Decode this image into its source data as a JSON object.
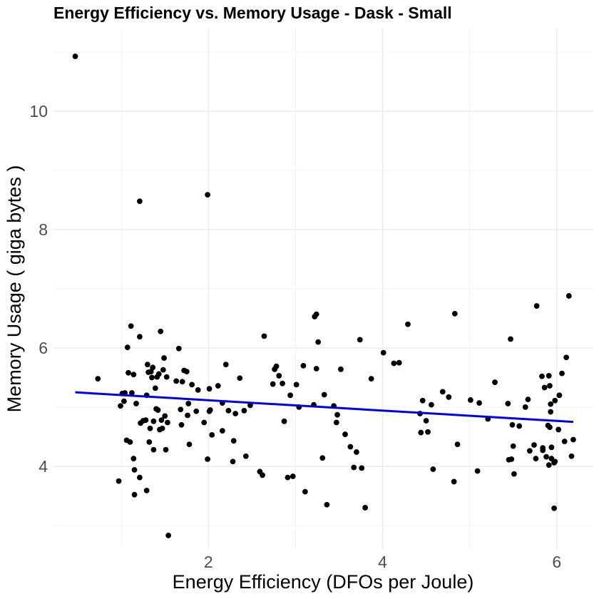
{
  "chart_data": {
    "type": "scatter",
    "title": "Energy Efficiency vs. Memory Usage  -  Dask  -  Small",
    "xlabel": "Energy Efficiency (DFOs per Joule)",
    "ylabel": "Memory Usage ( giga bytes )",
    "xlim": [
      0.22,
      6.42
    ],
    "ylim": [
      2.6,
      11.4
    ],
    "x_major_ticks": [
      2,
      4,
      6
    ],
    "x_minor_ticks": [
      1,
      3,
      5
    ],
    "y_major_ticks": [
      4,
      6,
      8,
      10
    ],
    "y_minor_ticks": [
      3,
      5,
      7,
      9,
      11
    ],
    "x_tick_labels": [
      "2",
      "4",
      "6"
    ],
    "y_tick_labels": [
      "4",
      "6",
      "8",
      "10"
    ],
    "grid": true,
    "legend": "none",
    "point_color": "#000000",
    "trend": {
      "type": "linear",
      "color": "#0000ee",
      "x": [
        0.47,
        6.19
      ],
      "y": [
        5.25,
        4.75
      ]
    },
    "points": [
      [
        0.47,
        10.93
      ],
      [
        0.73,
        5.48
      ],
      [
        0.97,
        3.75
      ],
      [
        0.99,
        5.02
      ],
      [
        1.01,
        5.23
      ],
      [
        1.03,
        5.1
      ],
      [
        1.04,
        5.24
      ],
      [
        1.06,
        4.44
      ],
      [
        1.07,
        6.01
      ],
      [
        1.08,
        5.58
      ],
      [
        1.1,
        4.41
      ],
      [
        1.11,
        6.37
      ],
      [
        1.12,
        5.24
      ],
      [
        1.14,
        4.13
      ],
      [
        1.14,
        5.55
      ],
      [
        1.15,
        3.94
      ],
      [
        1.15,
        3.52
      ],
      [
        1.17,
        5.06
      ],
      [
        1.21,
        3.81
      ],
      [
        1.21,
        6.19
      ],
      [
        1.21,
        8.48
      ],
      [
        1.22,
        4.73
      ],
      [
        1.25,
        4.77
      ],
      [
        1.28,
        4.78
      ],
      [
        1.29,
        3.59
      ],
      [
        1.29,
        5.2
      ],
      [
        1.3,
        5.72
      ],
      [
        1.31,
        5.59
      ],
      [
        1.32,
        4.41
      ],
      [
        1.33,
        4.64
      ],
      [
        1.34,
        5.6
      ],
      [
        1.35,
        5.5
      ],
      [
        1.36,
        5.67
      ],
      [
        1.37,
        4.28
      ],
      [
        1.37,
        4.76
      ],
      [
        1.39,
        5.32
      ],
      [
        1.4,
        4.97
      ],
      [
        1.41,
        5.51
      ],
      [
        1.42,
        4.95
      ],
      [
        1.43,
        5.56
      ],
      [
        1.44,
        4.62
      ],
      [
        1.45,
        6.28
      ],
      [
        1.46,
        4.78
      ],
      [
        1.47,
        4.64
      ],
      [
        1.48,
        5.63
      ],
      [
        1.49,
        5.83
      ],
      [
        1.5,
        4.85
      ],
      [
        1.51,
        4.28
      ],
      [
        1.52,
        5.51
      ],
      [
        1.53,
        4.74
      ],
      [
        1.54,
        2.83
      ],
      [
        1.63,
        5.44
      ],
      [
        1.66,
        5.99
      ],
      [
        1.68,
        4.96
      ],
      [
        1.69,
        4.7
      ],
      [
        1.7,
        5.43
      ],
      [
        1.72,
        5.62
      ],
      [
        1.75,
        5.6
      ],
      [
        1.76,
        4.86
      ],
      [
        1.77,
        5.06
      ],
      [
        1.78,
        4.37
      ],
      [
        1.81,
        5.38
      ],
      [
        1.86,
        4.93
      ],
      [
        1.88,
        5.29
      ],
      [
        1.95,
        4.74
      ],
      [
        1.99,
        4.12
      ],
      [
        1.99,
        8.59
      ],
      [
        2.01,
        5.31
      ],
      [
        2.01,
        4.93
      ],
      [
        2.02,
        4.95
      ],
      [
        2.04,
        4.53
      ],
      [
        2.11,
        5.36
      ],
      [
        2.16,
        5.07
      ],
      [
        2.16,
        4.6
      ],
      [
        2.2,
        5.72
      ],
      [
        2.23,
        4.94
      ],
      [
        2.28,
        4.08
      ],
      [
        2.29,
        4.43
      ],
      [
        2.31,
        4.89
      ],
      [
        2.36,
        5.49
      ],
      [
        2.41,
        4.94
      ],
      [
        2.43,
        4.17
      ],
      [
        2.48,
        5.03
      ],
      [
        2.59,
        3.91
      ],
      [
        2.62,
        3.85
      ],
      [
        2.64,
        6.2
      ],
      [
        2.74,
        5.39
      ],
      [
        2.76,
        5.64
      ],
      [
        2.78,
        5.69
      ],
      [
        2.81,
        5.53
      ],
      [
        2.85,
        5.4
      ],
      [
        2.87,
        4.76
      ],
      [
        2.91,
        3.81
      ],
      [
        2.94,
        5.2
      ],
      [
        2.97,
        3.83
      ],
      [
        3.01,
        5.38
      ],
      [
        3.04,
        5.0
      ],
      [
        3.09,
        5.7
      ],
      [
        3.11,
        3.57
      ],
      [
        3.21,
        5.04
      ],
      [
        3.22,
        6.53
      ],
      [
        3.24,
        6.57
      ],
      [
        3.24,
        5.65
      ],
      [
        3.26,
        6.1
      ],
      [
        3.31,
        4.14
      ],
      [
        3.33,
        5.21
      ],
      [
        3.36,
        3.35
      ],
      [
        3.44,
        5.02
      ],
      [
        3.47,
        4.74
      ],
      [
        3.48,
        4.87
      ],
      [
        3.52,
        5.64
      ],
      [
        3.57,
        4.54
      ],
      [
        3.63,
        4.33
      ],
      [
        3.67,
        3.98
      ],
      [
        3.7,
        4.24
      ],
      [
        3.74,
        6.14
      ],
      [
        3.76,
        3.97
      ],
      [
        3.8,
        3.3
      ],
      [
        3.87,
        5.48
      ],
      [
        4.01,
        5.92
      ],
      [
        4.13,
        5.74
      ],
      [
        4.19,
        5.75
      ],
      [
        4.29,
        6.4
      ],
      [
        4.43,
        4.89
      ],
      [
        4.44,
        4.57
      ],
      [
        4.46,
        5.11
      ],
      [
        4.5,
        4.77
      ],
      [
        4.52,
        4.58
      ],
      [
        4.56,
        5.04
      ],
      [
        4.58,
        3.95
      ],
      [
        4.69,
        5.26
      ],
      [
        4.76,
        5.17
      ],
      [
        4.82,
        3.74
      ],
      [
        4.83,
        6.58
      ],
      [
        4.86,
        4.37
      ],
      [
        5.01,
        5.12
      ],
      [
        5.09,
        3.92
      ],
      [
        5.11,
        5.07
      ],
      [
        5.21,
        4.8
      ],
      [
        5.29,
        5.42
      ],
      [
        5.44,
        5.06
      ],
      [
        5.45,
        4.11
      ],
      [
        5.47,
        6.15
      ],
      [
        5.48,
        4.12
      ],
      [
        5.49,
        4.7
      ],
      [
        5.5,
        4.34
      ],
      [
        5.51,
        3.87
      ],
      [
        5.57,
        4.68
      ],
      [
        5.64,
        5.0
      ],
      [
        5.67,
        5.13
      ],
      [
        5.69,
        4.26
      ],
      [
        5.74,
        4.36
      ],
      [
        5.76,
        4.13
      ],
      [
        5.77,
        6.71
      ],
      [
        5.83,
        5.52
      ],
      [
        5.84,
        4.31
      ],
      [
        5.84,
        4.27
      ],
      [
        5.86,
        5.33
      ],
      [
        5.88,
        4.16
      ],
      [
        5.9,
        4.69
      ],
      [
        5.91,
        4.02
      ],
      [
        5.91,
        5.53
      ],
      [
        5.92,
        4.66
      ],
      [
        5.92,
        5.36
      ],
      [
        5.93,
        5.05
      ],
      [
        5.93,
        4.92
      ],
      [
        5.94,
        4.32
      ],
      [
        5.94,
        4.13
      ],
      [
        5.97,
        4.06
      ],
      [
        5.97,
        3.29
      ],
      [
        5.98,
        4.08
      ],
      [
        5.98,
        5.11
      ],
      [
        6.02,
        4.62
      ],
      [
        6.03,
        5.2
      ],
      [
        6.06,
        5.57
      ],
      [
        6.09,
        4.42
      ],
      [
        6.11,
        5.84
      ],
      [
        6.14,
        6.88
      ],
      [
        6.17,
        4.17
      ],
      [
        6.19,
        4.45
      ]
    ]
  }
}
